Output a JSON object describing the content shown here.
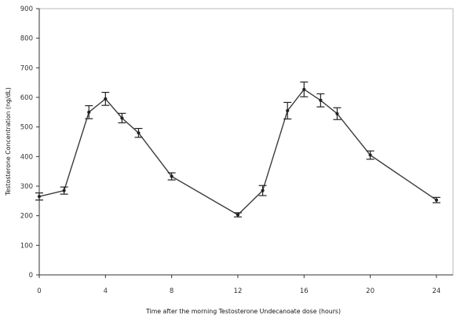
{
  "chart_data": {
    "type": "line",
    "title": "",
    "xlabel": "Time after the morning Testosterone Undecanoate dose (hours)",
    "ylabel": "Testosterone Concentration (ng/dL)",
    "xlim": [
      0,
      25
    ],
    "ylim": [
      0,
      900
    ],
    "xticks": [
      0,
      4,
      8,
      12,
      16,
      20,
      24
    ],
    "yticks": [
      0,
      100,
      200,
      300,
      400,
      500,
      600,
      700,
      800,
      900
    ],
    "xtick_labels": [
      "0",
      "4",
      "8",
      "12",
      "16",
      "20",
      "24"
    ],
    "ytick_labels": [
      "0",
      "100",
      "200",
      "300",
      "400",
      "500",
      "600",
      "700",
      "800",
      "900"
    ],
    "grid": false,
    "legend": "none",
    "colors": {
      "line": "#3a3a3a",
      "error_bar": "#222222",
      "frame": "#b8b8b8"
    },
    "series": [
      {
        "x": [
          0,
          1.5,
          3,
          4,
          5,
          6,
          8,
          12,
          13.5,
          15,
          16,
          17,
          18,
          20,
          24
        ],
        "y": [
          265,
          285,
          550,
          595,
          530,
          480,
          333,
          203,
          285,
          555,
          627,
          590,
          545,
          405,
          253
        ],
        "err": [
          12,
          12,
          22,
          22,
          16,
          15,
          12,
          7,
          17,
          28,
          25,
          22,
          20,
          14,
          9
        ]
      }
    ]
  }
}
